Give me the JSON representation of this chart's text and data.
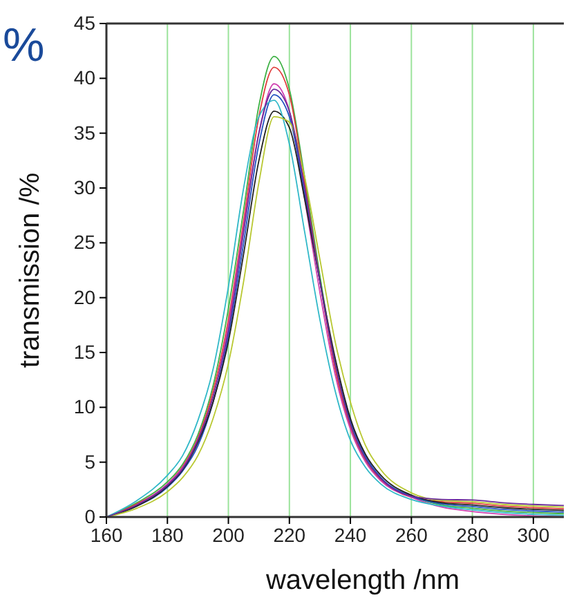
{
  "chart_data": {
    "type": "line",
    "xlabel": "wavelength /nm",
    "ylabel": "transmission /%",
    "annotations": [
      "%"
    ],
    "x": [
      160,
      170,
      180,
      185,
      190,
      195,
      200,
      205,
      210,
      215,
      220,
      225,
      230,
      235,
      240,
      245,
      250,
      260,
      270,
      280,
      290,
      300,
      310
    ],
    "xlim": [
      160,
      310
    ],
    "xticks": [
      160,
      180,
      200,
      220,
      240,
      260,
      280,
      300
    ],
    "ylim": [
      0,
      45
    ],
    "yticks": [
      0,
      5,
      10,
      15,
      20,
      25,
      30,
      35,
      40,
      45
    ],
    "grid": "x",
    "marker": "none",
    "line_style": "solid",
    "series": [
      {
        "color": "#3cb043",
        "values": [
          0,
          1.3,
          3.2,
          4.8,
          7.5,
          12,
          19,
          28,
          37.5,
          42,
          39,
          31,
          22,
          14,
          8.5,
          5.3,
          3.5,
          1.9,
          1.1,
          0.8,
          0.55,
          0.4,
          0.3
        ]
      },
      {
        "color": "#e03c3c",
        "values": [
          0,
          1.2,
          3,
          4.6,
          7.2,
          11.5,
          18,
          27,
          36.5,
          41,
          38.5,
          30.5,
          21.5,
          13.5,
          8.2,
          5.1,
          3.4,
          1.8,
          1.4,
          1.25,
          1,
          0.85,
          0.75
        ]
      },
      {
        "color": "#d040b0",
        "values": [
          0,
          1.1,
          3,
          4.5,
          7,
          11,
          17.5,
          26.5,
          35,
          39.5,
          37,
          29,
          20.5,
          13,
          8,
          5,
          3.3,
          1.8,
          0.9,
          0.5,
          0.25,
          0.1,
          0.02
        ]
      },
      {
        "color": "#2050c0",
        "values": [
          0,
          1,
          2.7,
          4.2,
          6.5,
          10.5,
          16.5,
          25,
          34,
          38.5,
          36.5,
          29.5,
          21.5,
          14,
          8.8,
          5.5,
          3.6,
          1.9,
          1.2,
          0.95,
          0.7,
          0.55,
          0.45
        ]
      },
      {
        "color": "#202020",
        "values": [
          0,
          1,
          2.8,
          4.3,
          6.8,
          10.5,
          16,
          24,
          32.5,
          37,
          35.5,
          29,
          21.5,
          14.5,
          9,
          5.7,
          3.8,
          2,
          1.3,
          1.1,
          0.85,
          0.7,
          0.6
        ]
      },
      {
        "color": "#30b8c8",
        "values": [
          0,
          1.5,
          3.8,
          5.6,
          8.8,
          13.5,
          21,
          30,
          36.5,
          38,
          34,
          26,
          18,
          11.5,
          7,
          4.5,
          3,
          1.6,
          1,
          0.65,
          0.4,
          0.25,
          0.15
        ]
      },
      {
        "color": "#b8c830",
        "values": [
          0,
          0.8,
          2.3,
          3.6,
          5.6,
          9,
          14,
          21.5,
          30.5,
          36.5,
          36,
          31,
          23.5,
          16,
          10.5,
          6.5,
          4.3,
          2.2,
          1.5,
          1.4,
          1.15,
          1,
          0.9
        ]
      },
      {
        "color": "#6a2a9a",
        "values": [
          0,
          1.1,
          2.9,
          4.4,
          7,
          11,
          17,
          26,
          35,
          39,
          37,
          30,
          21.5,
          14,
          8.5,
          5.3,
          3.5,
          1.9,
          1.6,
          1.55,
          1.3,
          1.15,
          1.05
        ]
      }
    ]
  }
}
